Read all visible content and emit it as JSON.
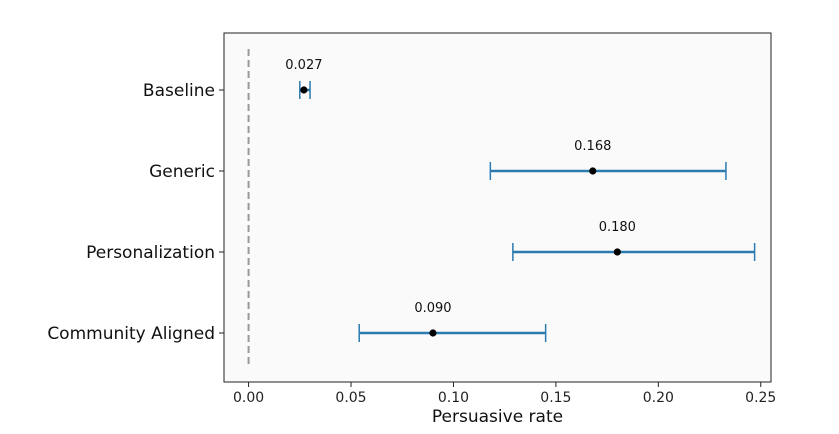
{
  "chart_data": {
    "type": "errorbar",
    "title": "",
    "xlabel": "Persuasive rate",
    "ylabel": "",
    "xlim": [
      -0.012,
      0.255
    ],
    "xticks": [
      0.0,
      0.05,
      0.1,
      0.15,
      0.2,
      0.25
    ],
    "xtick_labels": [
      "0.00",
      "0.05",
      "0.10",
      "0.15",
      "0.20",
      "0.25"
    ],
    "categories": [
      "Baseline",
      "Generic",
      "Personalization",
      "Community Aligned"
    ],
    "values": [
      0.027,
      0.168,
      0.18,
      0.09
    ],
    "value_labels": [
      "0.027",
      "0.168",
      "0.180",
      "0.090"
    ],
    "ci_low": [
      0.025,
      0.118,
      0.129,
      0.054
    ],
    "ci_high": [
      0.03,
      0.233,
      0.247,
      0.145
    ],
    "reference_line_x": 0.0,
    "grid": false,
    "colors": {
      "errorbar": "#2b7bb0",
      "point": "#000000",
      "reference_line": "#999999",
      "plot_background": "#fafafa",
      "axes_edge": "#222222"
    }
  }
}
